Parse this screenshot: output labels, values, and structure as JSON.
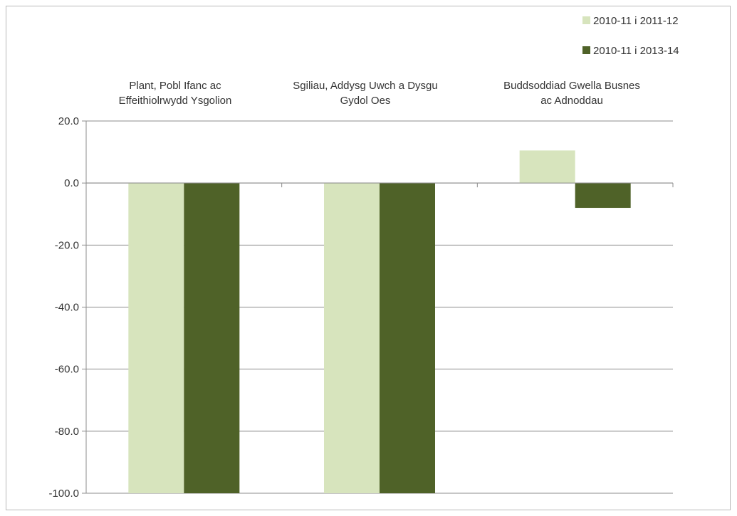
{
  "chart_data": {
    "type": "bar",
    "categories": [
      [
        "Plant, Pobl Ifanc ac",
        "Effeithiolrwydd Ysgolion"
      ],
      [
        "Sgiliau, Addysg Uwch a Dysgu",
        "Gydol Oes"
      ],
      [
        "Buddsoddiad Gwella Busnes",
        "ac Adnoddau"
      ]
    ],
    "series": [
      {
        "name": "2010-11 i 2011-12",
        "color": "#d7e4bd",
        "values": [
          -100.0,
          -100.0,
          10.5
        ]
      },
      {
        "name": "2010-11 i 2013-14",
        "color": "#4f6228",
        "values": [
          -100.0,
          -100.0,
          -8.0
        ]
      }
    ],
    "ylim": [
      -100,
      20
    ],
    "yticks": [
      "20.0",
      "0.0",
      "-20.0",
      "-40.0",
      "-60.0",
      "-80.0",
      "-100.0"
    ],
    "ytick_values": [
      20,
      0,
      -20,
      -40,
      -60,
      -80,
      -100
    ],
    "grid": true,
    "legend_position": "top-right",
    "category_label_position": "top",
    "title": "",
    "xlabel": "",
    "ylabel": ""
  }
}
